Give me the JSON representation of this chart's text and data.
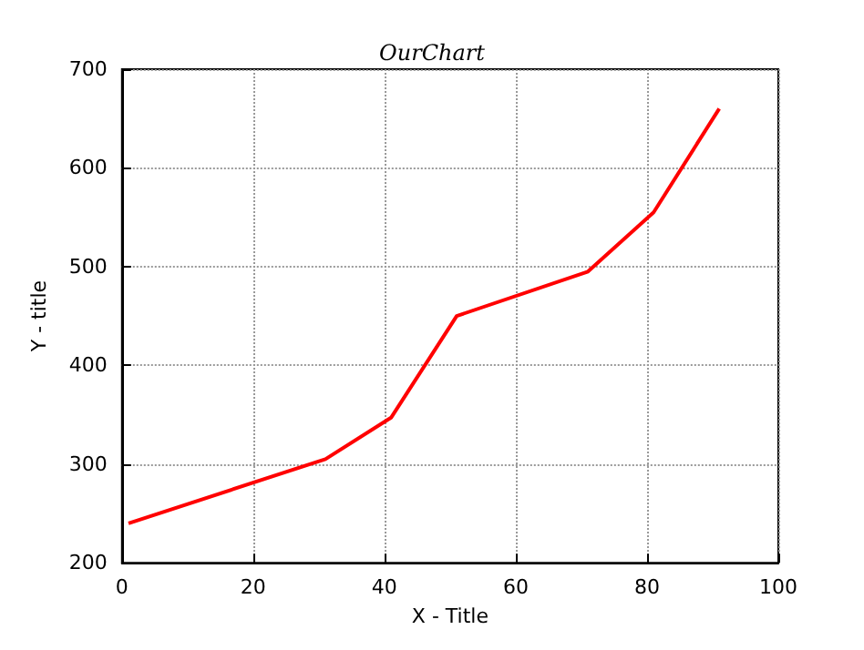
{
  "chart_data": {
    "type": "line",
    "title": "OurChart",
    "xlabel": "X - Title",
    "ylabel": "Y - title",
    "x": [
      1,
      31,
      41,
      51,
      71,
      81,
      91
    ],
    "series": [
      {
        "color": "#ff0000",
        "values": [
          240,
          305,
          347,
          450,
          495,
          555,
          660
        ]
      }
    ],
    "xlim": [
      0,
      100
    ],
    "xticks": [
      0,
      20,
      40,
      60,
      80,
      100
    ],
    "ylim": [
      200,
      700
    ],
    "yticks": [
      200,
      300,
      400,
      500,
      600,
      700
    ],
    "grid": true,
    "marker": "none",
    "line_style": "solid"
  }
}
